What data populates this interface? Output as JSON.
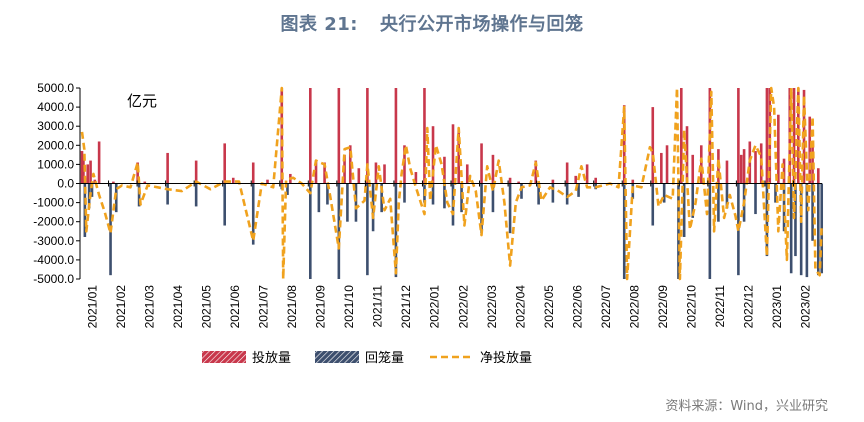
{
  "title": {
    "figure_no": "图表 21:",
    "text": "央行公开市场操作与回笼"
  },
  "unit_label": "亿元",
  "source": "资料来源：Wind，兴业研究",
  "colors": {
    "injection": "#c8374b",
    "withdrawal": "#3d4f6e",
    "net": "#f0a21e",
    "title": "#5f7590",
    "axis": "#000000"
  },
  "legend": [
    {
      "key": "injection",
      "label": "投放量"
    },
    {
      "key": "withdrawal",
      "label": "回笼量"
    },
    {
      "key": "net",
      "label": "净投放量"
    }
  ],
  "chart_data": {
    "type": "bar",
    "ylim": [
      -5000,
      5000
    ],
    "yticks": [
      "5000.0",
      "4000.0",
      "3000.0",
      "2000.0",
      "1000.0",
      "0.0",
      "-1000.0",
      "-2000.0",
      "-3000.0",
      "-4000.0",
      "-5000.0"
    ],
    "xticks": [
      "2021/01",
      "2021/02",
      "2021/03",
      "2021/04",
      "2021/05",
      "2021/06",
      "2021/07",
      "2021/08",
      "2021/09",
      "2021/10",
      "2021/11",
      "2021/12",
      "2022/01",
      "2022/02",
      "2022/03",
      "2022/04",
      "2022/05",
      "2022/06",
      "2022/07",
      "2022/08",
      "2022/09",
      "2022/10",
      "2022/11",
      "2022/12",
      "2023/01",
      "2023/02"
    ],
    "series": [
      {
        "name": "投放量",
        "key": "injection",
        "style": "bar-up",
        "points": [
          [
            0.0,
            1700
          ],
          [
            0.05,
            1500
          ],
          [
            0.1,
            300
          ],
          [
            0.2,
            1000
          ],
          [
            0.3,
            1200
          ],
          [
            0.45,
            200
          ],
          [
            0.6,
            2200
          ],
          [
            1.1,
            100
          ],
          [
            1.95,
            1100
          ],
          [
            2.2,
            100
          ],
          [
            3.0,
            1600
          ],
          [
            4.0,
            1200
          ],
          [
            5.0,
            2100
          ],
          [
            5.3,
            300
          ],
          [
            6.0,
            1100
          ],
          [
            6.5,
            200
          ],
          [
            7.0,
            5000
          ],
          [
            7.3,
            500
          ],
          [
            8.0,
            5000
          ],
          [
            8.2,
            1200
          ],
          [
            8.5,
            1100
          ],
          [
            9.0,
            5000
          ],
          [
            9.2,
            1500
          ],
          [
            9.4,
            2000
          ],
          [
            9.7,
            800
          ],
          [
            10.0,
            5000
          ],
          [
            10.3,
            1100
          ],
          [
            10.6,
            1000
          ],
          [
            11.0,
            5000
          ],
          [
            11.3,
            2000
          ],
          [
            11.7,
            600
          ],
          [
            12.0,
            5000
          ],
          [
            12.3,
            3000
          ],
          [
            12.7,
            1400
          ],
          [
            13.0,
            3100
          ],
          [
            13.2,
            2800
          ],
          [
            13.5,
            1000
          ],
          [
            14.0,
            2100
          ],
          [
            14.4,
            1500
          ],
          [
            15.0,
            300
          ],
          [
            15.3,
            100
          ],
          [
            15.9,
            1200
          ],
          [
            16.5,
            200
          ],
          [
            17.0,
            1100
          ],
          [
            17.3,
            400
          ],
          [
            17.7,
            1000
          ],
          [
            18.0,
            300
          ],
          [
            19.0,
            4100
          ],
          [
            19.3,
            200
          ],
          [
            20.0,
            4000
          ],
          [
            20.3,
            1600
          ],
          [
            20.5,
            2000
          ],
          [
            21.0,
            5000
          ],
          [
            21.2,
            3000
          ],
          [
            21.4,
            1500
          ],
          [
            21.7,
            2000
          ],
          [
            22.0,
            5000
          ],
          [
            22.3,
            1800
          ],
          [
            22.6,
            1200
          ],
          [
            23.0,
            5000
          ],
          [
            23.1,
            1500
          ],
          [
            23.2,
            1800
          ],
          [
            23.4,
            2200
          ],
          [
            23.6,
            1700
          ],
          [
            23.8,
            2100
          ],
          [
            24.0,
            5000
          ],
          [
            24.1,
            5000
          ],
          [
            24.4,
            3600
          ],
          [
            24.6,
            1300
          ],
          [
            24.8,
            5000
          ],
          [
            24.95,
            5000
          ],
          [
            25.1,
            5000
          ],
          [
            25.3,
            4900
          ],
          [
            25.5,
            3500
          ],
          [
            25.6,
            2000
          ],
          [
            25.8,
            800
          ]
        ]
      },
      {
        "name": "回笼量",
        "key": "withdrawal",
        "style": "bar-down",
        "points": [
          [
            0.1,
            -2800
          ],
          [
            0.25,
            -1300
          ],
          [
            0.35,
            -700
          ],
          [
            1.0,
            -4800
          ],
          [
            1.2,
            -1500
          ],
          [
            2.0,
            -1200
          ],
          [
            3.0,
            -1100
          ],
          [
            4.0,
            -1200
          ],
          [
            5.0,
            -2200
          ],
          [
            6.0,
            -3200
          ],
          [
            7.0,
            -300
          ],
          [
            7.2,
            -600
          ],
          [
            8.0,
            -5000
          ],
          [
            8.3,
            -1500
          ],
          [
            8.6,
            -1100
          ],
          [
            9.0,
            -5000
          ],
          [
            9.3,
            -2000
          ],
          [
            9.6,
            -2000
          ],
          [
            10.0,
            -4800
          ],
          [
            10.2,
            -2500
          ],
          [
            10.5,
            -1500
          ],
          [
            11.0,
            -4900
          ],
          [
            11.3,
            -1000
          ],
          [
            12.0,
            -1000
          ],
          [
            12.3,
            -1100
          ],
          [
            12.7,
            -1300
          ],
          [
            13.0,
            -2200
          ],
          [
            13.3,
            -1500
          ],
          [
            14.0,
            -2600
          ],
          [
            14.4,
            -1500
          ],
          [
            15.0,
            -2600
          ],
          [
            15.4,
            -800
          ],
          [
            16.0,
            -1100
          ],
          [
            16.5,
            -1000
          ],
          [
            17.0,
            -1100
          ],
          [
            17.4,
            -700
          ],
          [
            18.0,
            -300
          ],
          [
            19.0,
            -5000
          ],
          [
            19.3,
            -800
          ],
          [
            20.0,
            -2200
          ],
          [
            20.4,
            -1000
          ],
          [
            20.9,
            -5000
          ],
          [
            21.1,
            -2800
          ],
          [
            21.4,
            -1800
          ],
          [
            22.0,
            -5000
          ],
          [
            22.3,
            -2000
          ],
          [
            22.6,
            -1300
          ],
          [
            23.0,
            -4800
          ],
          [
            23.2,
            -2000
          ],
          [
            23.6,
            -1600
          ],
          [
            24.0,
            -3800
          ],
          [
            24.3,
            -1000
          ],
          [
            24.6,
            -2500
          ],
          [
            24.85,
            -4700
          ],
          [
            25.0,
            -3800
          ],
          [
            25.2,
            -4800
          ],
          [
            25.4,
            -4900
          ],
          [
            25.6,
            -3000
          ],
          [
            25.8,
            -4800
          ],
          [
            25.92,
            -4700
          ]
        ]
      },
      {
        "name": "净投放量",
        "key": "net",
        "style": "dashed-line",
        "points": [
          [
            0.0,
            2700
          ],
          [
            0.08,
            1800
          ],
          [
            0.15,
            -2500
          ],
          [
            0.3,
            -500
          ],
          [
            0.4,
            500
          ],
          [
            0.6,
            -600
          ],
          [
            0.8,
            -1500
          ],
          [
            1.0,
            -2600
          ],
          [
            1.2,
            -300
          ],
          [
            1.4,
            -100
          ],
          [
            1.7,
            -200
          ],
          [
            1.95,
            1100
          ],
          [
            2.05,
            -1100
          ],
          [
            2.3,
            -100
          ],
          [
            3.0,
            -300
          ],
          [
            3.5,
            -400
          ],
          [
            4.0,
            100
          ],
          [
            4.5,
            -300
          ],
          [
            5.0,
            100
          ],
          [
            5.5,
            100
          ],
          [
            6.0,
            -3000
          ],
          [
            6.3,
            0
          ],
          [
            6.7,
            -200
          ],
          [
            7.0,
            5000
          ],
          [
            7.05,
            -5000
          ],
          [
            7.15,
            200
          ],
          [
            7.4,
            300
          ],
          [
            7.7,
            0
          ],
          [
            8.0,
            -500
          ],
          [
            8.2,
            1200
          ],
          [
            8.5,
            1000
          ],
          [
            8.7,
            -700
          ],
          [
            9.0,
            -3400
          ],
          [
            9.2,
            1800
          ],
          [
            9.4,
            1900
          ],
          [
            9.6,
            -1300
          ],
          [
            9.9,
            -900
          ],
          [
            10.0,
            1000
          ],
          [
            10.2,
            -1800
          ],
          [
            10.4,
            900
          ],
          [
            10.6,
            -1400
          ],
          [
            10.8,
            -800
          ],
          [
            11.0,
            -4700
          ],
          [
            11.1,
            -1000
          ],
          [
            11.2,
            500
          ],
          [
            11.35,
            2000
          ],
          [
            11.5,
            800
          ],
          [
            11.7,
            -200
          ],
          [
            12.0,
            -1600
          ],
          [
            12.1,
            2900
          ],
          [
            12.2,
            -900
          ],
          [
            12.4,
            2000
          ],
          [
            12.6,
            1000
          ],
          [
            12.8,
            -1000
          ],
          [
            13.0,
            -1600
          ],
          [
            13.2,
            2900
          ],
          [
            13.4,
            -2200
          ],
          [
            13.6,
            400
          ],
          [
            13.8,
            -400
          ],
          [
            14.0,
            -2700
          ],
          [
            14.2,
            900
          ],
          [
            14.4,
            -400
          ],
          [
            14.6,
            1200
          ],
          [
            14.8,
            -1000
          ],
          [
            15.0,
            -4300
          ],
          [
            15.2,
            -1000
          ],
          [
            15.4,
            -200
          ],
          [
            15.7,
            -100
          ],
          [
            15.9,
            1100
          ],
          [
            16.1,
            -900
          ],
          [
            16.4,
            -200
          ],
          [
            16.7,
            -400
          ],
          [
            17.0,
            -700
          ],
          [
            17.3,
            -400
          ],
          [
            17.5,
            900
          ],
          [
            17.7,
            -200
          ],
          [
            18.0,
            -200
          ],
          [
            18.5,
            0
          ],
          [
            18.8,
            -200
          ],
          [
            19.0,
            4000
          ],
          [
            19.1,
            -5000
          ],
          [
            19.3,
            -100
          ],
          [
            19.6,
            -200
          ],
          [
            19.9,
            1900
          ],
          [
            20.0,
            1600
          ],
          [
            20.2,
            -1200
          ],
          [
            20.4,
            -600
          ],
          [
            20.7,
            -800
          ],
          [
            20.85,
            5000
          ],
          [
            20.95,
            -5000
          ],
          [
            21.1,
            2800
          ],
          [
            21.3,
            -2400
          ],
          [
            21.5,
            -1000
          ],
          [
            21.7,
            1300
          ],
          [
            21.9,
            -1600
          ],
          [
            22.05,
            4800
          ],
          [
            22.15,
            -2500
          ],
          [
            22.3,
            1300
          ],
          [
            22.5,
            -1800
          ],
          [
            22.7,
            -600
          ],
          [
            22.9,
            -1700
          ],
          [
            23.0,
            -2500
          ],
          [
            23.2,
            -1000
          ],
          [
            23.4,
            1200
          ],
          [
            23.6,
            2000
          ],
          [
            23.8,
            1400
          ],
          [
            24.0,
            -3800
          ],
          [
            24.15,
            5000
          ],
          [
            24.25,
            4000
          ],
          [
            24.4,
            -2500
          ],
          [
            24.55,
            1000
          ],
          [
            24.7,
            -4000
          ],
          [
            24.85,
            5000
          ],
          [
            24.95,
            -1800
          ],
          [
            25.1,
            5000
          ],
          [
            25.2,
            -2000
          ],
          [
            25.3,
            4600
          ],
          [
            25.45,
            -1400
          ],
          [
            25.6,
            3500
          ],
          [
            25.7,
            -4500
          ],
          [
            25.85,
            -4800
          ],
          [
            25.92,
            -2200
          ]
        ]
      }
    ]
  }
}
